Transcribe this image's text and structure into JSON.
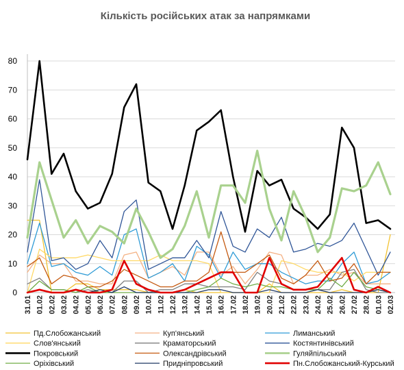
{
  "chart_data": {
    "type": "line",
    "title": "Кількість російських атак за напрямками",
    "xlabel": "",
    "ylabel": "",
    "ylim": [
      0,
      80
    ],
    "y_ticks": [
      0,
      10,
      20,
      30,
      40,
      50,
      60,
      70,
      80
    ],
    "grid": true,
    "legend_position": "bottom",
    "categories": [
      "31.01",
      "01.02",
      "02.02",
      "03.02",
      "04.02",
      "05.02",
      "06.02",
      "07.02",
      "08.02",
      "09.02",
      "10.02",
      "11.02",
      "12.02",
      "13.02",
      "14.02",
      "15.02",
      "16.02",
      "17.02",
      "18.02",
      "19.02",
      "20.02",
      "21.02",
      "22.02",
      "23.02",
      "24.02",
      "25.02",
      "26.02",
      "27.02",
      "28.02",
      "01.03",
      "02.03"
    ],
    "series": [
      {
        "name": "Пд.Слобожанський",
        "color": "#f2c231",
        "width": 1.3,
        "values": [
          25,
          25,
          0,
          0,
          3,
          3,
          1,
          1,
          1,
          1,
          0,
          0,
          0,
          1,
          0,
          0,
          0,
          0,
          0,
          0,
          3,
          0,
          0,
          0,
          0,
          0,
          1,
          0,
          0,
          0,
          20
        ]
      },
      {
        "name": "Куп'янський",
        "color": "#f4b183",
        "width": 1.3,
        "values": [
          7,
          13,
          10,
          10,
          4,
          4,
          3,
          3,
          13,
          14,
          5,
          7,
          9,
          6,
          14,
          14,
          6,
          9,
          3,
          8,
          14,
          13,
          3,
          6,
          6,
          8,
          6,
          7,
          3,
          3,
          3
        ]
      },
      {
        "name": "Лиманський",
        "color": "#2e9bd6",
        "width": 1.3,
        "values": [
          10,
          24,
          9,
          10,
          7,
          6,
          9,
          6,
          20,
          22,
          5,
          7,
          10,
          4,
          16,
          13,
          5,
          14,
          8,
          10,
          10,
          7,
          5,
          3,
          4,
          4,
          10,
          14,
          3,
          4,
          7
        ]
      },
      {
        "name": "Слов'янський",
        "color": "#ffd966",
        "width": 1.3,
        "values": [
          0,
          15,
          12,
          12,
          12,
          13,
          12,
          11,
          11,
          11,
          11,
          13,
          11,
          11,
          11,
          10,
          0,
          0,
          0,
          0,
          0,
          11,
          10,
          8,
          7,
          7,
          7,
          4,
          7,
          7,
          7
        ]
      },
      {
        "name": "Краматорський",
        "color": "#7f7f7f",
        "width": 1.3,
        "values": [
          3,
          5,
          1,
          1,
          0,
          1,
          0,
          0,
          4,
          4,
          0,
          1,
          1,
          3,
          3,
          2,
          2,
          2,
          1,
          7,
          4,
          3,
          1,
          1,
          1,
          1,
          7,
          8,
          1,
          0,
          0
        ]
      },
      {
        "name": "Костянтинівський",
        "color": "#2f5597",
        "width": 1.3,
        "values": [
          14,
          39,
          11,
          12,
          8,
          10,
          18,
          12,
          28,
          32,
          8,
          10,
          12,
          12,
          18,
          12,
          28,
          16,
          14,
          22,
          19,
          26,
          14,
          15,
          17,
          16,
          18,
          24,
          15,
          6,
          14
        ]
      },
      {
        "name": "Покровський",
        "color": "#000000",
        "width": 2.6,
        "values": [
          46,
          80,
          41,
          48,
          35,
          29,
          31,
          41,
          64,
          72,
          38,
          35,
          22,
          37,
          56,
          59,
          63,
          40,
          21,
          42,
          37,
          39,
          29,
          26,
          22,
          27,
          57,
          50,
          24,
          25,
          22
        ]
      },
      {
        "name": "Олександрівський",
        "color": "#c55a11",
        "width": 1.3,
        "values": [
          9,
          12,
          3,
          6,
          5,
          2,
          2,
          4,
          8,
          6,
          4,
          2,
          2,
          4,
          4,
          7,
          21,
          7,
          7,
          10,
          13,
          5,
          3,
          6,
          11,
          4,
          5,
          10,
          3,
          7,
          7
        ]
      },
      {
        "name": "Гуляйпільський",
        "color": "#a9d18e",
        "width": 3.2,
        "values": [
          19,
          45,
          32,
          19,
          25,
          17,
          23,
          21,
          17,
          29,
          21,
          12,
          15,
          23,
          35,
          19,
          37,
          37,
          31,
          49,
          29,
          18,
          35,
          26,
          14,
          19,
          36,
          35,
          37,
          45,
          34
        ]
      },
      {
        "name": "Оріхівський",
        "color": "#70ad47",
        "width": 1.3,
        "values": [
          0,
          4,
          1,
          1,
          0,
          2,
          0,
          0,
          0,
          0,
          0,
          0,
          0,
          0,
          1,
          2,
          5,
          3,
          2,
          3,
          2,
          2,
          1,
          1,
          1,
          5,
          2,
          7,
          2,
          1,
          0
        ]
      },
      {
        "name": "Придніпровський",
        "color": "#1f3864",
        "width": 1.3,
        "values": [
          0,
          1,
          0,
          0,
          1,
          0,
          1,
          0,
          2,
          0,
          0,
          0,
          0,
          0,
          0,
          1,
          1,
          0,
          0,
          0,
          1,
          0,
          0,
          0,
          1,
          0,
          0,
          0,
          0,
          1,
          0
        ]
      },
      {
        "name": "Пн.Слобожанський-Курський",
        "color": "#e00000",
        "width": 2.6,
        "values": [
          0,
          1,
          0,
          0,
          1,
          0,
          0,
          1,
          11,
          3,
          1,
          0,
          0,
          1,
          3,
          5,
          7,
          7,
          0,
          0,
          12,
          3,
          1,
          1,
          2,
          7,
          12,
          1,
          0,
          2,
          0
        ]
      }
    ]
  }
}
